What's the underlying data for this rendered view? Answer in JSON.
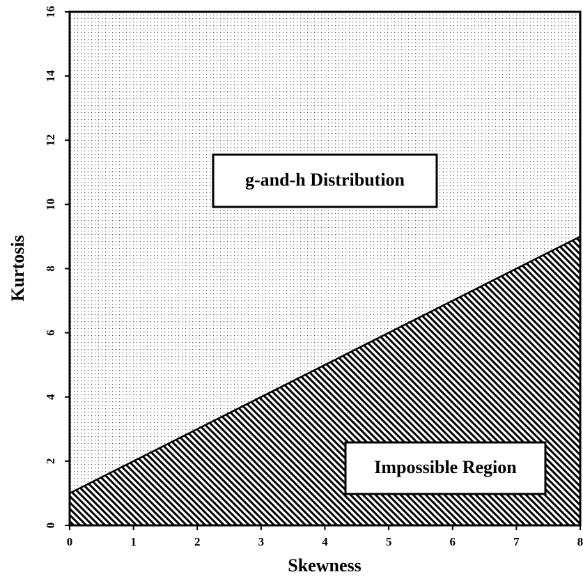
{
  "chart_data": {
    "type": "area",
    "x": [
      0,
      8
    ],
    "values": [
      1,
      9
    ],
    "xlim": [
      0,
      8
    ],
    "ylim": [
      0,
      16
    ],
    "xticks": [
      0,
      1,
      2,
      3,
      4,
      5,
      6,
      7,
      8
    ],
    "yticks": [
      0,
      2,
      4,
      6,
      8,
      10,
      12,
      14,
      16
    ],
    "x_label": "Skewness",
    "y_label": "Kurtosis",
    "annotations": [
      "g-and-h Distribution",
      "Impossible Region"
    ]
  }
}
